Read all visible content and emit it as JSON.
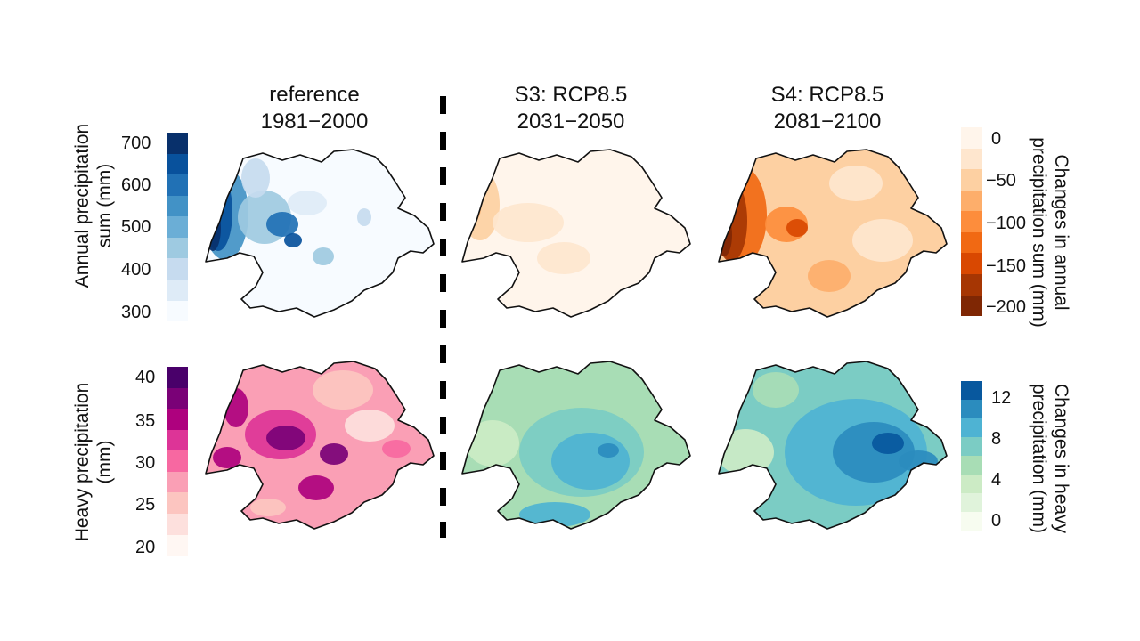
{
  "columns": [
    {
      "line1": "reference",
      "line2": "1981−2000"
    },
    {
      "line1": "S3: RCP8.5",
      "line2": "2031−2050"
    },
    {
      "line1": "S4: RCP8.5",
      "line2": "2081−2100"
    }
  ],
  "rows": {
    "annual": {
      "label_line1": "Annual precipitation",
      "label_line2": "sum (mm)",
      "ticks": [
        "700",
        "600",
        "500",
        "400",
        "300"
      ],
      "colors": [
        "#08306b",
        "#08519c",
        "#2171b5",
        "#4292c6",
        "#6baed6",
        "#9ecae1",
        "#c6dbef",
        "#deebf7",
        "#f7fbff"
      ]
    },
    "heavy": {
      "label_line1": "Heavy precipitation",
      "label_line2": "(mm)",
      "ticks": [
        "40",
        "35",
        "30",
        "25",
        "20"
      ],
      "colors": [
        "#49006a",
        "#7a0177",
        "#ae017e",
        "#dd3497",
        "#f768a1",
        "#fa9fb5",
        "#fcc5c0",
        "#fde0dd",
        "#fff7f3"
      ]
    }
  },
  "change_annual": {
    "label_line1": "Changes in annual",
    "label_line2": "precipitation sum (mm)",
    "ticks": [
      "0",
      "−50",
      "−100",
      "−150",
      "−200"
    ],
    "colors": [
      "#fff5eb",
      "#fee6ce",
      "#fdd0a2",
      "#fdae6b",
      "#fd8d3c",
      "#f16913",
      "#d94801",
      "#a63603",
      "#7f2704"
    ]
  },
  "change_heavy": {
    "label_line1": "Changes in heavy",
    "label_line2": "precipitation (mm)",
    "ticks": [
      "12",
      "8",
      "4",
      "0"
    ],
    "colors": [
      "#08589e",
      "#2b8cbe",
      "#4eb3d3",
      "#7bccc4",
      "#a8ddb5",
      "#ccebc5",
      "#e0f3db",
      "#f7fcf0"
    ]
  }
}
